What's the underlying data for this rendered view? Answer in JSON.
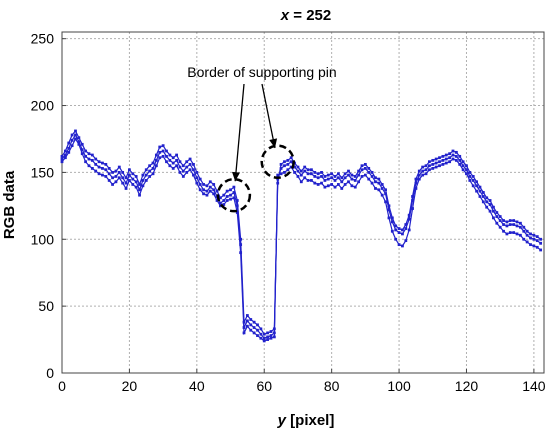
{
  "chart_data": {
    "type": "line",
    "title_var": "x",
    "title_rest": " = 252",
    "xlabel_var": "y",
    "xlabel_rest": " [pixel]",
    "ylabel": "RGB data",
    "xlim": [
      0,
      143
    ],
    "ylim": [
      0,
      255
    ],
    "xticks": [
      0,
      20,
      40,
      60,
      80,
      100,
      120,
      140
    ],
    "yticks": [
      0,
      50,
      100,
      150,
      200,
      250
    ],
    "grid": true,
    "line_color": "#2222cc",
    "annotation": {
      "text": "Border of supporting pin",
      "points": [
        [
          51,
          133
        ],
        [
          64,
          158
        ]
      ]
    },
    "series": [
      {
        "values": [
          162,
          166,
          172,
          178,
          181,
          176,
          171,
          166,
          164,
          163,
          160,
          158,
          157,
          156,
          153,
          150,
          151,
          154,
          150,
          146,
          152,
          149,
          147,
          141,
          148,
          152,
          155,
          157,
          163,
          169,
          170,
          166,
          163,
          161,
          163,
          158,
          155,
          158,
          160,
          156,
          150,
          145,
          141,
          140,
          143,
          141,
          136,
          131,
          133,
          136,
          137,
          139,
          129,
          100,
          38,
          43,
          40,
          38,
          36,
          33,
          29,
          30,
          31,
          33,
          142,
          156,
          158,
          159,
          161,
          157,
          154,
          151,
          154,
          152,
          152,
          150,
          149,
          150,
          147,
          148,
          149,
          147,
          149,
          146,
          149,
          151,
          148,
          147,
          151,
          155,
          156,
          153,
          150,
          146,
          145,
          141,
          137,
          125,
          116,
          110,
          108,
          107,
          111,
          118,
          132,
          145,
          151,
          154,
          155,
          158,
          159,
          160,
          161,
          162,
          163,
          164,
          166,
          165,
          162,
          158,
          155,
          150,
          147,
          143,
          139,
          135,
          131,
          129,
          124,
          120,
          117,
          114,
          113,
          114,
          114,
          113,
          112,
          109,
          106,
          104,
          103,
          102,
          100
        ]
      },
      {
        "values": [
          160,
          163,
          168,
          174,
          178,
          173,
          167,
          162,
          160,
          159,
          156,
          154,
          153,
          152,
          149,
          146,
          147,
          150,
          146,
          142,
          148,
          145,
          143,
          137,
          144,
          148,
          151,
          153,
          159,
          165,
          166,
          162,
          159,
          157,
          159,
          154,
          151,
          154,
          156,
          152,
          146,
          141,
          137,
          136,
          139,
          137,
          132,
          127,
          129,
          132,
          133,
          135,
          125,
          96,
          34,
          39,
          36,
          34,
          32,
          29,
          26,
          27,
          28,
          30,
          145,
          153,
          155,
          156,
          158,
          154,
          151,
          148,
          151,
          149,
          149,
          147,
          146,
          147,
          144,
          145,
          146,
          144,
          146,
          143,
          146,
          148,
          145,
          144,
          148,
          152,
          153,
          150,
          147,
          143,
          142,
          138,
          134,
          122,
          113,
          107,
          105,
          104,
          108,
          115,
          129,
          142,
          148,
          151,
          152,
          155,
          156,
          157,
          158,
          159,
          160,
          161,
          163,
          162,
          159,
          155,
          152,
          147,
          144,
          140,
          136,
          132,
          128,
          126,
          121,
          117,
          114,
          111,
          110,
          111,
          111,
          110,
          109,
          106,
          103,
          101,
          100,
          99,
          97
        ]
      },
      {
        "values": [
          158,
          161,
          165,
          170,
          175,
          171,
          164,
          158,
          155,
          153,
          151,
          149,
          148,
          147,
          144,
          141,
          143,
          146,
          142,
          138,
          144,
          141,
          139,
          133,
          140,
          144,
          147,
          149,
          155,
          161,
          162,
          158,
          155,
          153,
          155,
          150,
          147,
          150,
          152,
          148,
          142,
          137,
          134,
          133,
          136,
          134,
          129,
          125,
          126,
          129,
          130,
          131,
          120,
          90,
          30,
          35,
          32,
          30,
          28,
          26,
          24,
          25,
          26,
          27,
          148,
          149,
          150,
          152,
          154,
          150,
          147,
          143,
          146,
          144,
          144,
          142,
          141,
          142,
          139,
          140,
          141,
          139,
          141,
          138,
          141,
          143,
          140,
          139,
          143,
          147,
          148,
          145,
          142,
          138,
          137,
          133,
          128,
          116,
          106,
          100,
          96,
          95,
          99,
          107,
          123,
          138,
          145,
          148,
          149,
          152,
          153,
          154,
          155,
          156,
          157,
          158,
          160,
          159,
          156,
          152,
          149,
          144,
          140,
          136,
          132,
          128,
          124,
          121,
          116,
          112,
          109,
          106,
          104,
          105,
          105,
          104,
          103,
          100,
          98,
          96,
          95,
          94,
          92
        ]
      }
    ]
  }
}
